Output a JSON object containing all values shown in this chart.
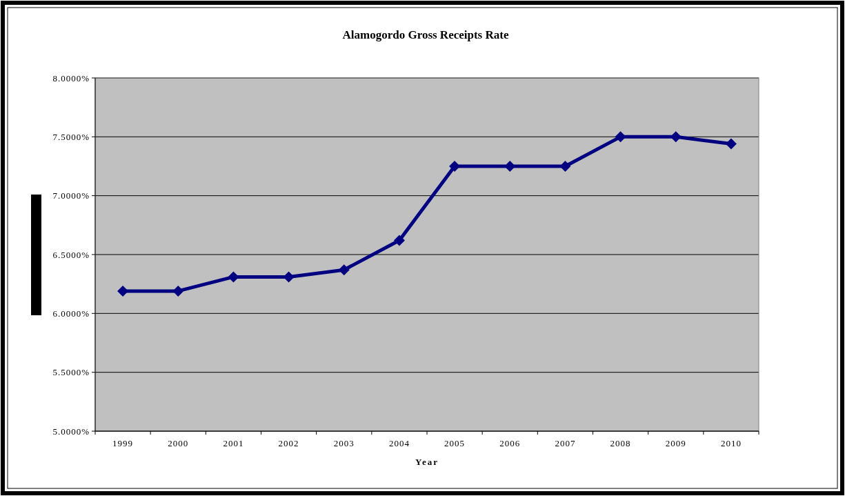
{
  "chart_data": {
    "type": "line",
    "title": "Alamogordo Gross Receipts Rate",
    "xlabel": "Year",
    "categories": [
      "1999",
      "2000",
      "2001",
      "2002",
      "2003",
      "2004",
      "2005",
      "2006",
      "2007",
      "2008",
      "2009",
      "2010"
    ],
    "series": [
      {
        "color": "#000080",
        "values": [
          6.19,
          6.19,
          6.31,
          6.31,
          6.37,
          6.62,
          7.25,
          7.25,
          7.25,
          7.5,
          7.5,
          7.44
        ]
      }
    ],
    "ylim": [
      5,
      8
    ],
    "yticks": [
      {
        "value": 5,
        "label": "5.0000%"
      },
      {
        "value": 5.5,
        "label": "5.5000%"
      },
      {
        "value": 6,
        "label": "6.0000%"
      },
      {
        "value": 6.5,
        "label": "6.5000%"
      },
      {
        "value": 7,
        "label": "7.0000%"
      },
      {
        "value": 7.5,
        "label": "7.5000%"
      },
      {
        "value": 8,
        "label": "8.0000%"
      }
    ],
    "grid": "y",
    "marker": "diamond",
    "line_style": "solid"
  }
}
